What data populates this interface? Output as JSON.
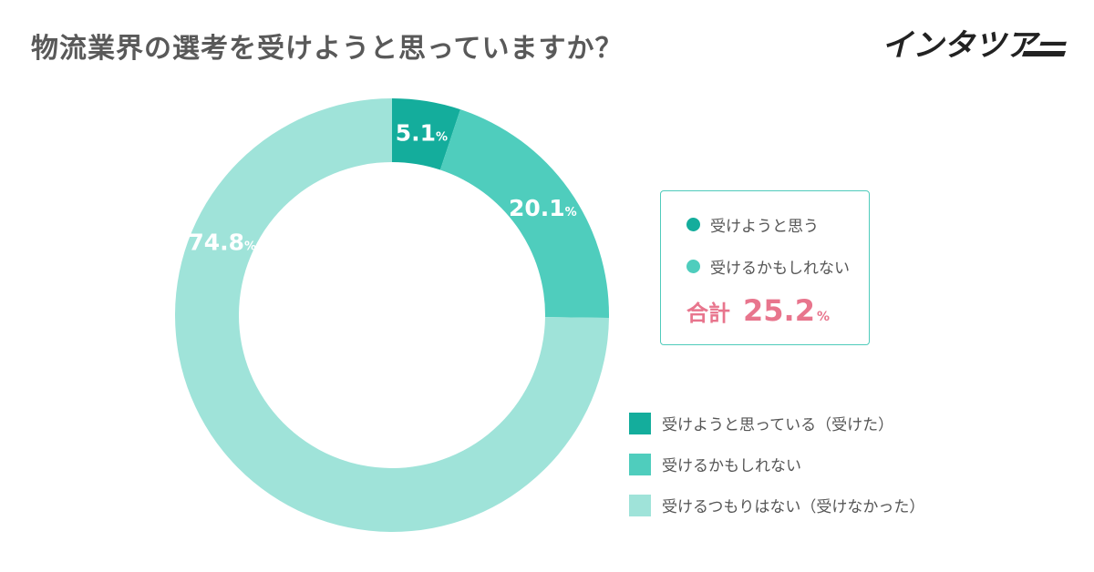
{
  "title": "物流業界の選考を受けようと思っていますか？",
  "logo": {
    "text": "インタツアー",
    "color": "#222222",
    "accent": "#1aa99a"
  },
  "summary": {
    "items": [
      {
        "label": "受けようと思う",
        "color": "#14ad9c"
      },
      {
        "label": "受けるかもしれない",
        "color": "#4fcdbd"
      }
    ],
    "total_label": "合計",
    "total_value": "25.2",
    "total_unit": "%",
    "border_color": "#4fcbbb",
    "total_color": "#e8758d"
  },
  "chart_data": {
    "type": "pie",
    "donut": true,
    "title": "物流業界の選考を受けようと思っていますか？",
    "unit": "%",
    "series": [
      {
        "name": "受けようと思っている（受けた）",
        "value": 5.1,
        "label": "5.1",
        "color": "#14ad9c"
      },
      {
        "name": "受けるかもしれない",
        "value": 20.1,
        "label": "20.1",
        "color": "#4fcdbd"
      },
      {
        "name": "受けるつもりはない（受けなかった）",
        "value": 74.8,
        "label": "74.8",
        "color": "#9fe3d9"
      }
    ],
    "legend_position": "bottom-right"
  }
}
